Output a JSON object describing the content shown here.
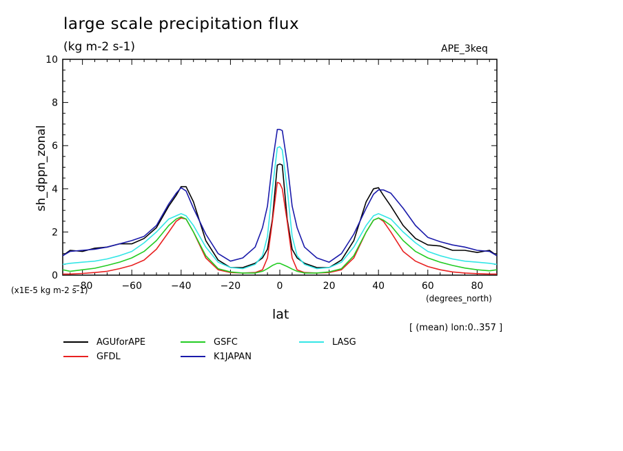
{
  "chart_data": {
    "type": "line",
    "title": "large scale precipitation flux",
    "units": "(kg m-2 s-1)",
    "run_tag": "APE_3keq",
    "ylabel": "sh_dppn_zonal",
    "scale_note": "(x1E-5 kg m-2 s-1)",
    "xlabel": "lat",
    "x_units": "(degrees_north)",
    "footnote": "[ (mean) lon:0..357 ]",
    "xlim": [
      -88,
      88
    ],
    "ylim": [
      0,
      10
    ],
    "x_ticks": [
      -80,
      -60,
      -40,
      -20,
      0,
      20,
      40,
      60,
      80
    ],
    "x_tick_labels": [
      "−80",
      "−60",
      "−40",
      "−20",
      "0",
      "20",
      "40",
      "60",
      "80"
    ],
    "y_ticks": [
      0,
      2,
      4,
      6,
      8,
      10
    ],
    "y_tick_labels": [
      "0",
      "2",
      "4",
      "6",
      "8",
      "10"
    ],
    "grid": false,
    "legend_position": "bottom",
    "series": [
      {
        "name": "AGUforAPE",
        "color": "#000000",
        "x": [
          -88,
          -85,
          -80,
          -75,
          -70,
          -65,
          -60,
          -55,
          -50,
          -45,
          -42,
          -40,
          -38,
          -35,
          -30,
          -25,
          -20,
          -15,
          -10,
          -7,
          -5,
          -3,
          -1,
          0,
          1,
          3,
          5,
          7,
          10,
          15,
          20,
          25,
          30,
          35,
          38,
          40,
          42,
          45,
          50,
          55,
          60,
          65,
          70,
          75,
          80,
          85,
          88
        ],
        "y": [
          0.9,
          1.15,
          1.1,
          1.25,
          1.3,
          1.45,
          1.45,
          1.7,
          2.2,
          3.2,
          3.7,
          4.1,
          4.1,
          3.4,
          1.6,
          0.7,
          0.35,
          0.35,
          0.55,
          0.8,
          1.2,
          2.6,
          5.1,
          5.15,
          5.1,
          2.6,
          1.2,
          0.8,
          0.55,
          0.35,
          0.35,
          0.7,
          1.6,
          3.4,
          4.0,
          4.05,
          3.7,
          3.2,
          2.3,
          1.7,
          1.4,
          1.35,
          1.15,
          1.15,
          1.05,
          1.15,
          0.9
        ]
      },
      {
        "name": "GFDL",
        "color": "#e82020",
        "x": [
          -88,
          -85,
          -80,
          -75,
          -70,
          -65,
          -60,
          -55,
          -50,
          -45,
          -42,
          -40,
          -38,
          -35,
          -30,
          -25,
          -20,
          -15,
          -10,
          -7,
          -5,
          -3,
          -1,
          0,
          1,
          3,
          5,
          7,
          10,
          15,
          20,
          25,
          30,
          35,
          38,
          40,
          42,
          45,
          50,
          55,
          60,
          65,
          70,
          75,
          80,
          85,
          88
        ],
        "y": [
          0.05,
          0.05,
          0.08,
          0.12,
          0.18,
          0.3,
          0.45,
          0.7,
          1.2,
          2.0,
          2.5,
          2.65,
          2.6,
          2.0,
          0.8,
          0.25,
          0.12,
          0.1,
          0.12,
          0.25,
          0.8,
          2.5,
          4.3,
          4.25,
          4.0,
          2.5,
          0.8,
          0.25,
          0.12,
          0.1,
          0.12,
          0.25,
          0.8,
          2.0,
          2.55,
          2.65,
          2.5,
          2.0,
          1.1,
          0.65,
          0.4,
          0.25,
          0.15,
          0.1,
          0.07,
          0.05,
          0.05
        ]
      },
      {
        "name": "GSFC",
        "color": "#22cc22",
        "x": [
          -88,
          -85,
          -80,
          -75,
          -70,
          -65,
          -60,
          -55,
          -50,
          -45,
          -42,
          -40,
          -38,
          -35,
          -30,
          -25,
          -20,
          -15,
          -10,
          -7,
          -5,
          -3,
          -1,
          0,
          1,
          3,
          5,
          7,
          10,
          15,
          20,
          25,
          30,
          35,
          38,
          40,
          42,
          45,
          50,
          55,
          60,
          65,
          70,
          75,
          80,
          85,
          88
        ],
        "y": [
          0.25,
          0.18,
          0.25,
          0.32,
          0.45,
          0.6,
          0.8,
          1.1,
          1.6,
          2.3,
          2.6,
          2.7,
          2.6,
          2.0,
          0.9,
          0.3,
          0.15,
          0.1,
          0.1,
          0.18,
          0.3,
          0.45,
          0.55,
          0.55,
          0.5,
          0.4,
          0.28,
          0.18,
          0.1,
          0.1,
          0.15,
          0.3,
          0.9,
          2.0,
          2.55,
          2.65,
          2.55,
          2.3,
          1.6,
          1.1,
          0.8,
          0.6,
          0.45,
          0.33,
          0.25,
          0.2,
          0.25
        ]
      },
      {
        "name": "K1JAPAN",
        "color": "#1a1aaa",
        "x": [
          -88,
          -85,
          -80,
          -75,
          -70,
          -65,
          -60,
          -55,
          -50,
          -45,
          -42,
          -40,
          -38,
          -35,
          -30,
          -25,
          -20,
          -15,
          -10,
          -7,
          -5,
          -3,
          -1,
          0,
          1,
          3,
          5,
          7,
          10,
          15,
          20,
          25,
          30,
          35,
          38,
          40,
          42,
          45,
          50,
          55,
          60,
          65,
          70,
          75,
          80,
          85,
          88
        ],
        "y": [
          0.9,
          1.1,
          1.15,
          1.2,
          1.3,
          1.45,
          1.6,
          1.8,
          2.3,
          3.3,
          3.8,
          4.05,
          3.9,
          3.1,
          1.9,
          1.0,
          0.65,
          0.8,
          1.3,
          2.2,
          3.2,
          5.2,
          6.75,
          6.75,
          6.7,
          5.2,
          3.2,
          2.2,
          1.3,
          0.8,
          0.6,
          1.0,
          1.9,
          3.1,
          3.75,
          3.95,
          3.95,
          3.8,
          3.1,
          2.3,
          1.75,
          1.55,
          1.4,
          1.3,
          1.15,
          1.1,
          0.9
        ]
      },
      {
        "name": "LASG",
        "color": "#33e6e6",
        "x": [
          -88,
          -85,
          -80,
          -75,
          -70,
          -65,
          -60,
          -55,
          -50,
          -45,
          -42,
          -40,
          -38,
          -35,
          -30,
          -25,
          -20,
          -15,
          -10,
          -7,
          -5,
          -3,
          -1,
          0,
          1,
          3,
          5,
          7,
          10,
          15,
          20,
          25,
          30,
          35,
          38,
          40,
          42,
          45,
          50,
          55,
          60,
          65,
          70,
          75,
          80,
          85,
          88
        ],
        "y": [
          0.5,
          0.55,
          0.6,
          0.65,
          0.75,
          0.9,
          1.1,
          1.5,
          2.0,
          2.6,
          2.75,
          2.85,
          2.75,
          2.3,
          1.3,
          0.6,
          0.35,
          0.3,
          0.5,
          0.9,
          1.8,
          4.0,
          5.9,
          5.95,
          5.8,
          4.0,
          1.8,
          0.9,
          0.5,
          0.3,
          0.35,
          0.6,
          1.3,
          2.3,
          2.75,
          2.85,
          2.75,
          2.6,
          2.0,
          1.5,
          1.1,
          0.9,
          0.75,
          0.65,
          0.6,
          0.55,
          0.5
        ]
      }
    ]
  }
}
